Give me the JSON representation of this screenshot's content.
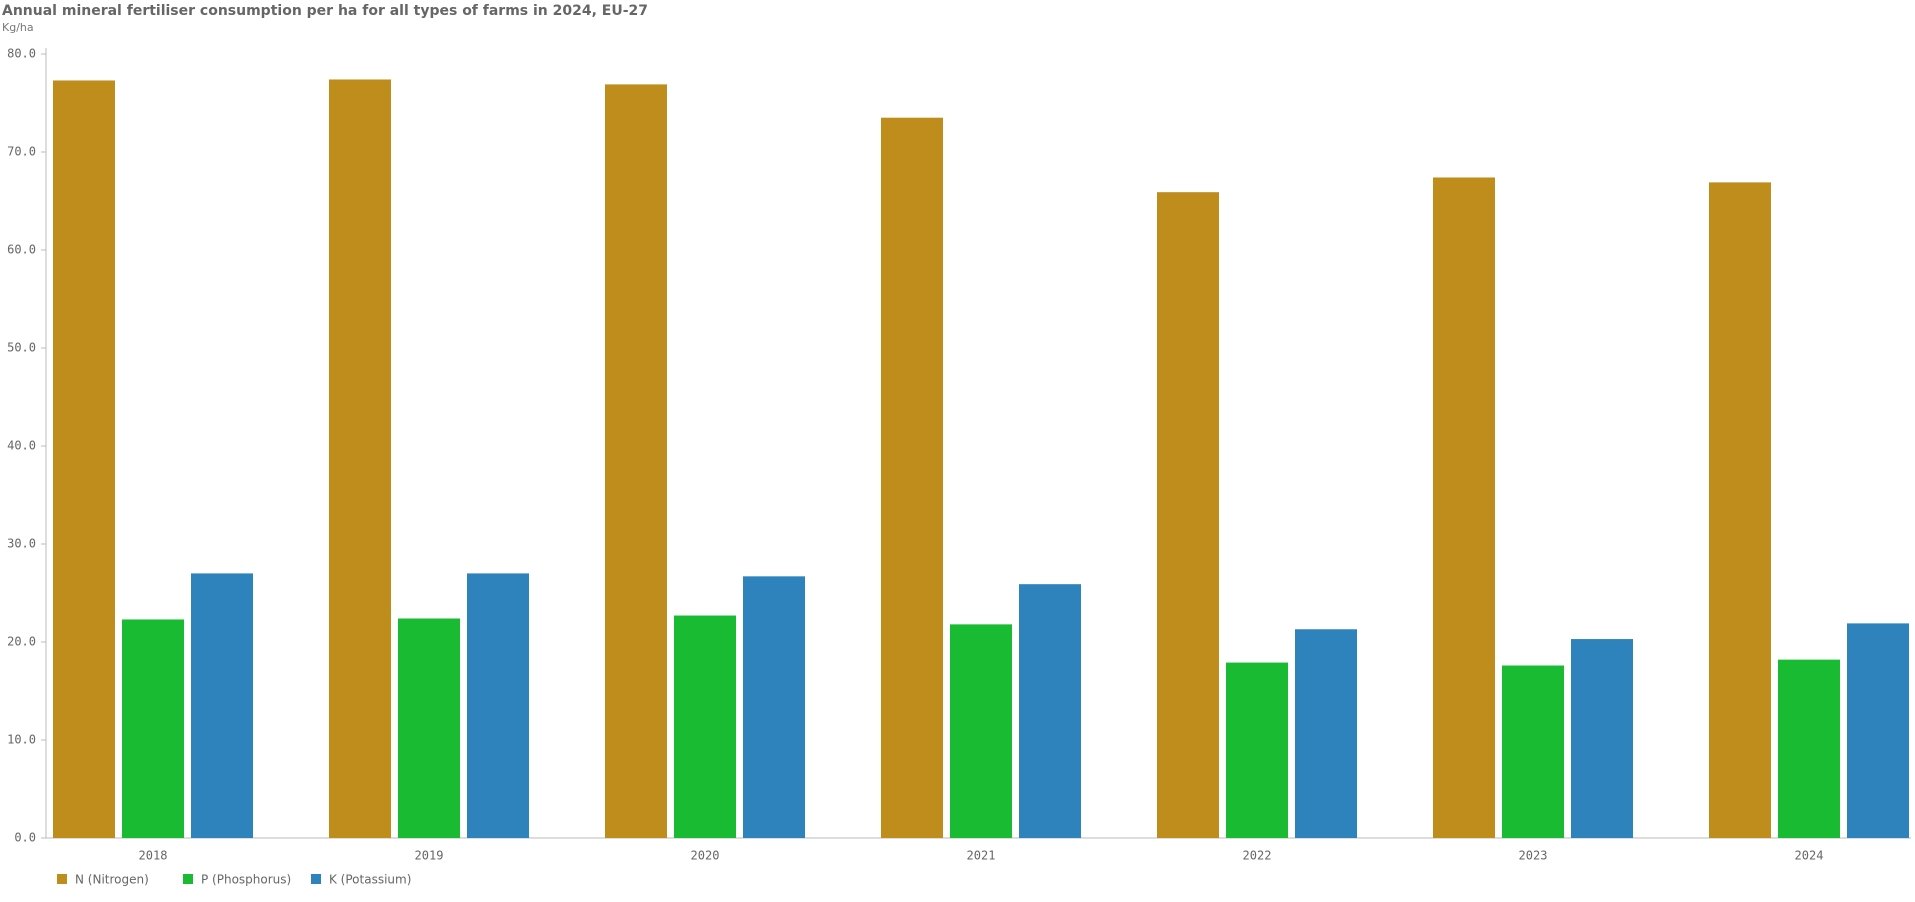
{
  "chart_data": {
    "type": "bar",
    "title": "Annual mineral fertiliser consumption per ha for all types of farms in 2024, EU-27",
    "subtitle": "Kg/ha",
    "categories": [
      "2018",
      "2019",
      "2020",
      "2021",
      "2022",
      "2023",
      "2024"
    ],
    "series": [
      {
        "name": "N (Nitrogen)",
        "color": "#bf8d1c",
        "values": [
          77.3,
          77.4,
          76.9,
          73.5,
          65.9,
          67.4,
          66.9
        ]
      },
      {
        "name": "P (Phosphorus)",
        "color": "#19bb33",
        "values": [
          22.3,
          22.4,
          22.7,
          21.8,
          17.9,
          17.6,
          18.2
        ]
      },
      {
        "name": "K (Potassium)",
        "color": "#2e83bd",
        "values": [
          27.0,
          27.0,
          26.7,
          25.9,
          21.3,
          20.3,
          21.9
        ]
      }
    ],
    "ylim": [
      0,
      80
    ],
    "yticks": [
      {
        "value": 0,
        "label": "0.0"
      },
      {
        "value": 10,
        "label": "10.0"
      },
      {
        "value": 20,
        "label": "20.0"
      },
      {
        "value": 30,
        "label": "30.0"
      },
      {
        "value": 40,
        "label": "40.0"
      },
      {
        "value": 50,
        "label": "50.0"
      },
      {
        "value": 60,
        "label": "60.0"
      },
      {
        "value": 70,
        "label": "70.0"
      },
      {
        "value": 80,
        "label": "80.0"
      }
    ],
    "grid": false,
    "legend": "bottom-left"
  }
}
